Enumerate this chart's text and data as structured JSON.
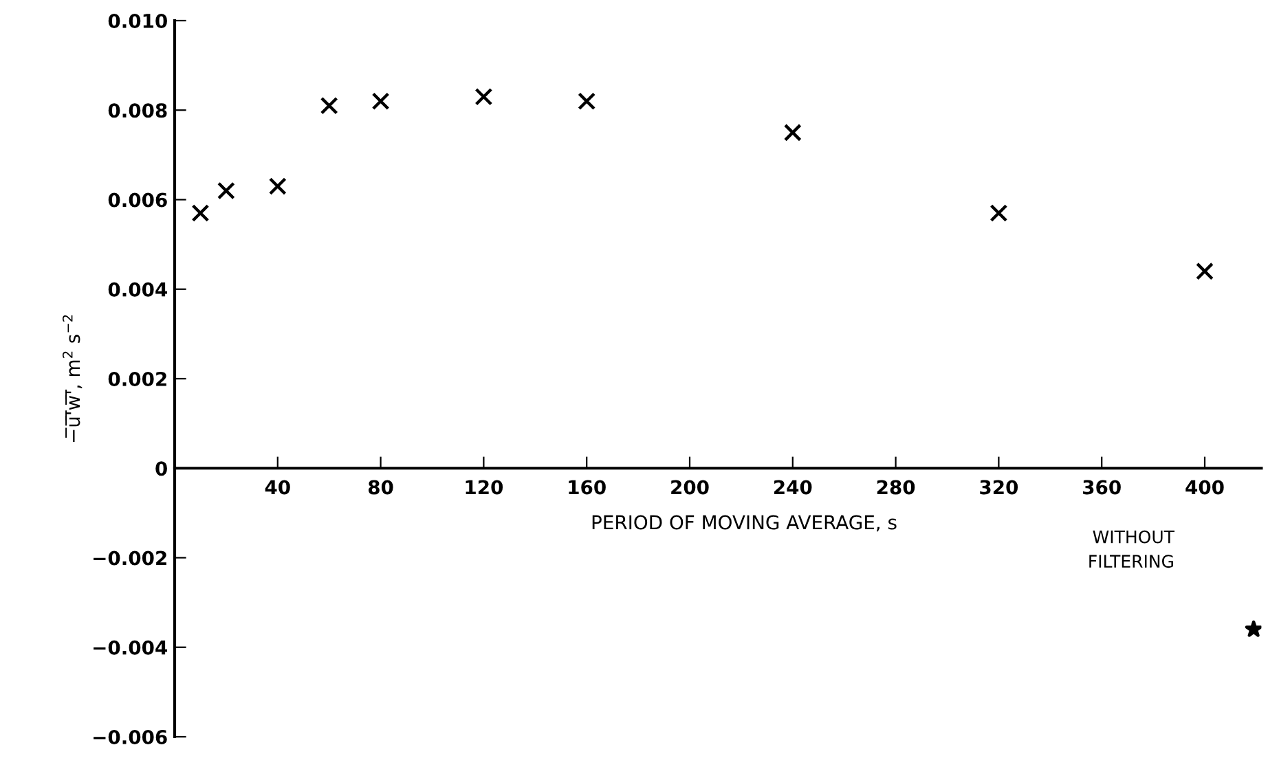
{
  "chart_data": {
    "type": "scatter",
    "xlabel": "PERIOD OF MOVING AVERAGE, s",
    "ylabel": "−̅u̅'̅w̅'̅, m$^{2}$ s$^{−2}$",
    "series": [
      {
        "color": "#000000",
        "marker": "cross",
        "x": [
          10,
          20,
          40,
          60,
          80,
          120,
          160,
          240,
          320,
          400
        ],
        "values": [
          0.0057,
          0.0062,
          0.0063,
          0.0081,
          0.0082,
          0.0083,
          0.0082,
          0.0075,
          0.0057,
          0.0044
        ]
      },
      {
        "color": "#000000",
        "marker": "star",
        "x": [
          419
        ],
        "values": [
          -0.0036
        ]
      }
    ],
    "annotations": [
      "WITHOUT\nFILTERING"
    ],
    "xlim": [
      0,
      422
    ],
    "xticks": [
      40,
      80,
      120,
      160,
      200,
      240,
      280,
      320,
      360,
      400
    ],
    "ylim": [
      -0.006,
      0.01
    ],
    "yticks": [
      {
        "value": -0.006,
        "label": "−0.006"
      },
      {
        "value": -0.004,
        "label": "−0.004"
      },
      {
        "value": -0.002,
        "label": "−0.002"
      },
      0,
      0.002,
      0.004,
      0.006,
      0.008,
      {
        "value": 0.01,
        "label": "0.010"
      }
    ],
    "grid": false,
    "legend": false
  }
}
